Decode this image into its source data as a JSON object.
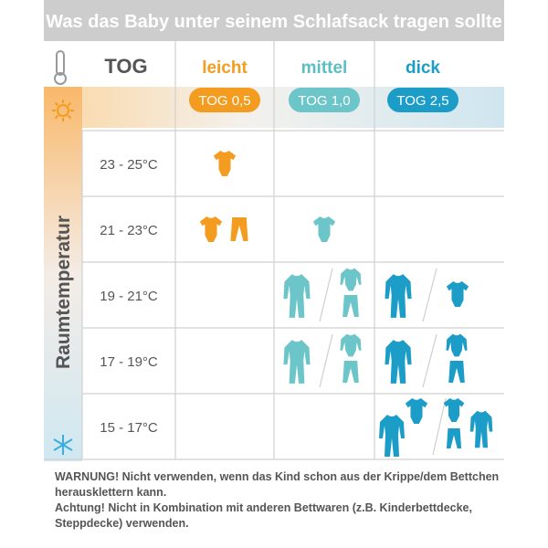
{
  "header": {
    "title": "Was das Baby unter seinem Schlafsack tragen sollte"
  },
  "table": {
    "corner": "TOG",
    "columns": [
      {
        "name": "leicht",
        "tog": "TOG 0,5"
      },
      {
        "name": "mittel",
        "tog": "TOG 1,0"
      },
      {
        "name": "dick",
        "tog": "TOG 2,5"
      }
    ],
    "row_axis_label": "Raumtemperatur",
    "rows": [
      "23 - 25°C",
      "21 - 23°C",
      "19 - 21°C",
      "17 - 19°C",
      "15 - 17°C"
    ]
  },
  "footer": {
    "warning": "WARNUNG! Nicht verwenden, wenn das Kind schon aus der Krippe/dem Bettchen herausklettern kann.",
    "note": "Achtung! Nicht in Kombination mit anderen Bettwaren (z.B. Kinderbettdecke, Steppdecke) verwenden."
  }
}
